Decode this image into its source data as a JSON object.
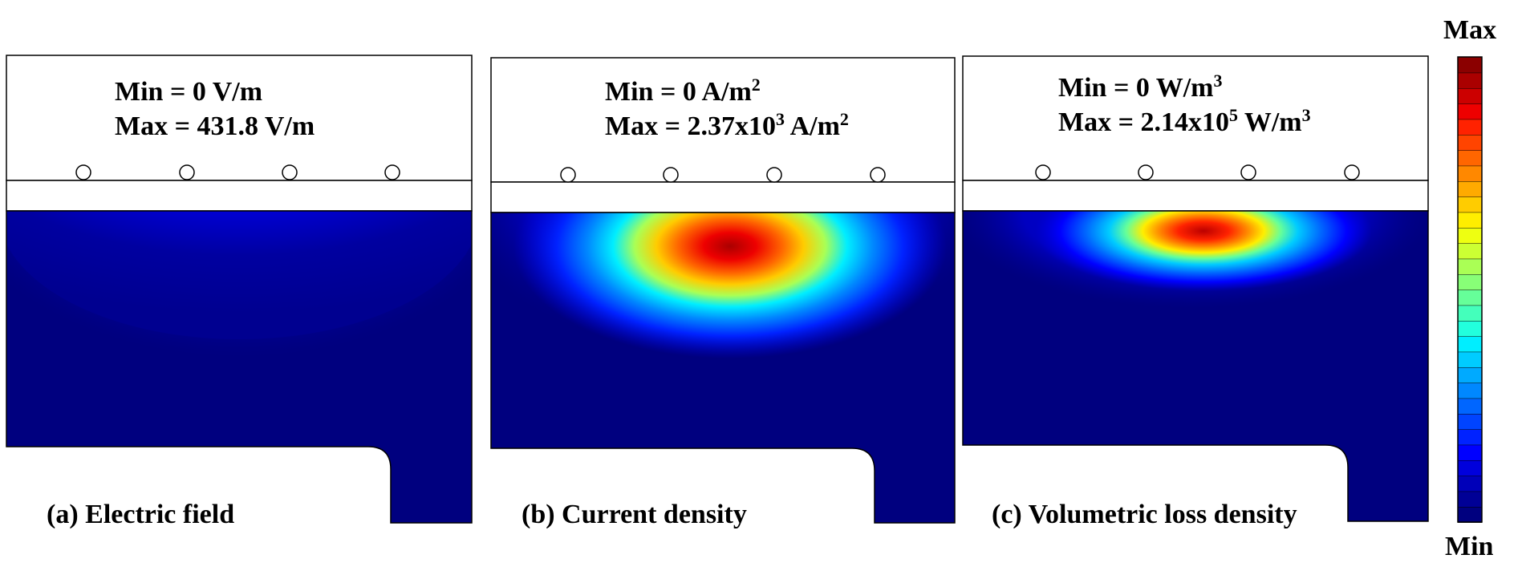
{
  "colorbar": {
    "max_label": "Max",
    "min_label": "Min",
    "colors": [
      "#00007f",
      "#000096",
      "#0000b9",
      "#0000dc",
      "#0000ff",
      "#0022ff",
      "#0044ff",
      "#0066ff",
      "#0088ff",
      "#00aaff",
      "#00ccff",
      "#00eeff",
      "#22ffdd",
      "#44ffbb",
      "#66ff99",
      "#88ff77",
      "#aaff55",
      "#ccff33",
      "#eeff11",
      "#ffee00",
      "#ffcc00",
      "#ffaa00",
      "#ff8800",
      "#ff6600",
      "#ff4400",
      "#ff2200",
      "#ee0000",
      "#cc0000",
      "#aa0000",
      "#8b0000"
    ]
  },
  "panels": [
    {
      "id": "a",
      "min_text": "Min =  0  V/m",
      "max_text": "Max =  431.8 V/m",
      "caption": "(a) Electric field"
    },
    {
      "id": "b",
      "min_prefix": "Min =  0  A/m",
      "min_sup": "2",
      "max_prefix": "Max = 2.37x10",
      "max_exp": "3",
      "max_unit": "  A/m",
      "max_unit_sup": "2",
      "caption": "(b) Current density"
    },
    {
      "id": "c",
      "min_prefix": "Min = 0 W/m",
      "min_sup": "3",
      "max_prefix": "Max = 2.14x10",
      "max_exp": "5",
      "max_unit": " W/m",
      "max_unit_sup": "3",
      "caption": "(c) Volumetric loss density"
    }
  ]
}
